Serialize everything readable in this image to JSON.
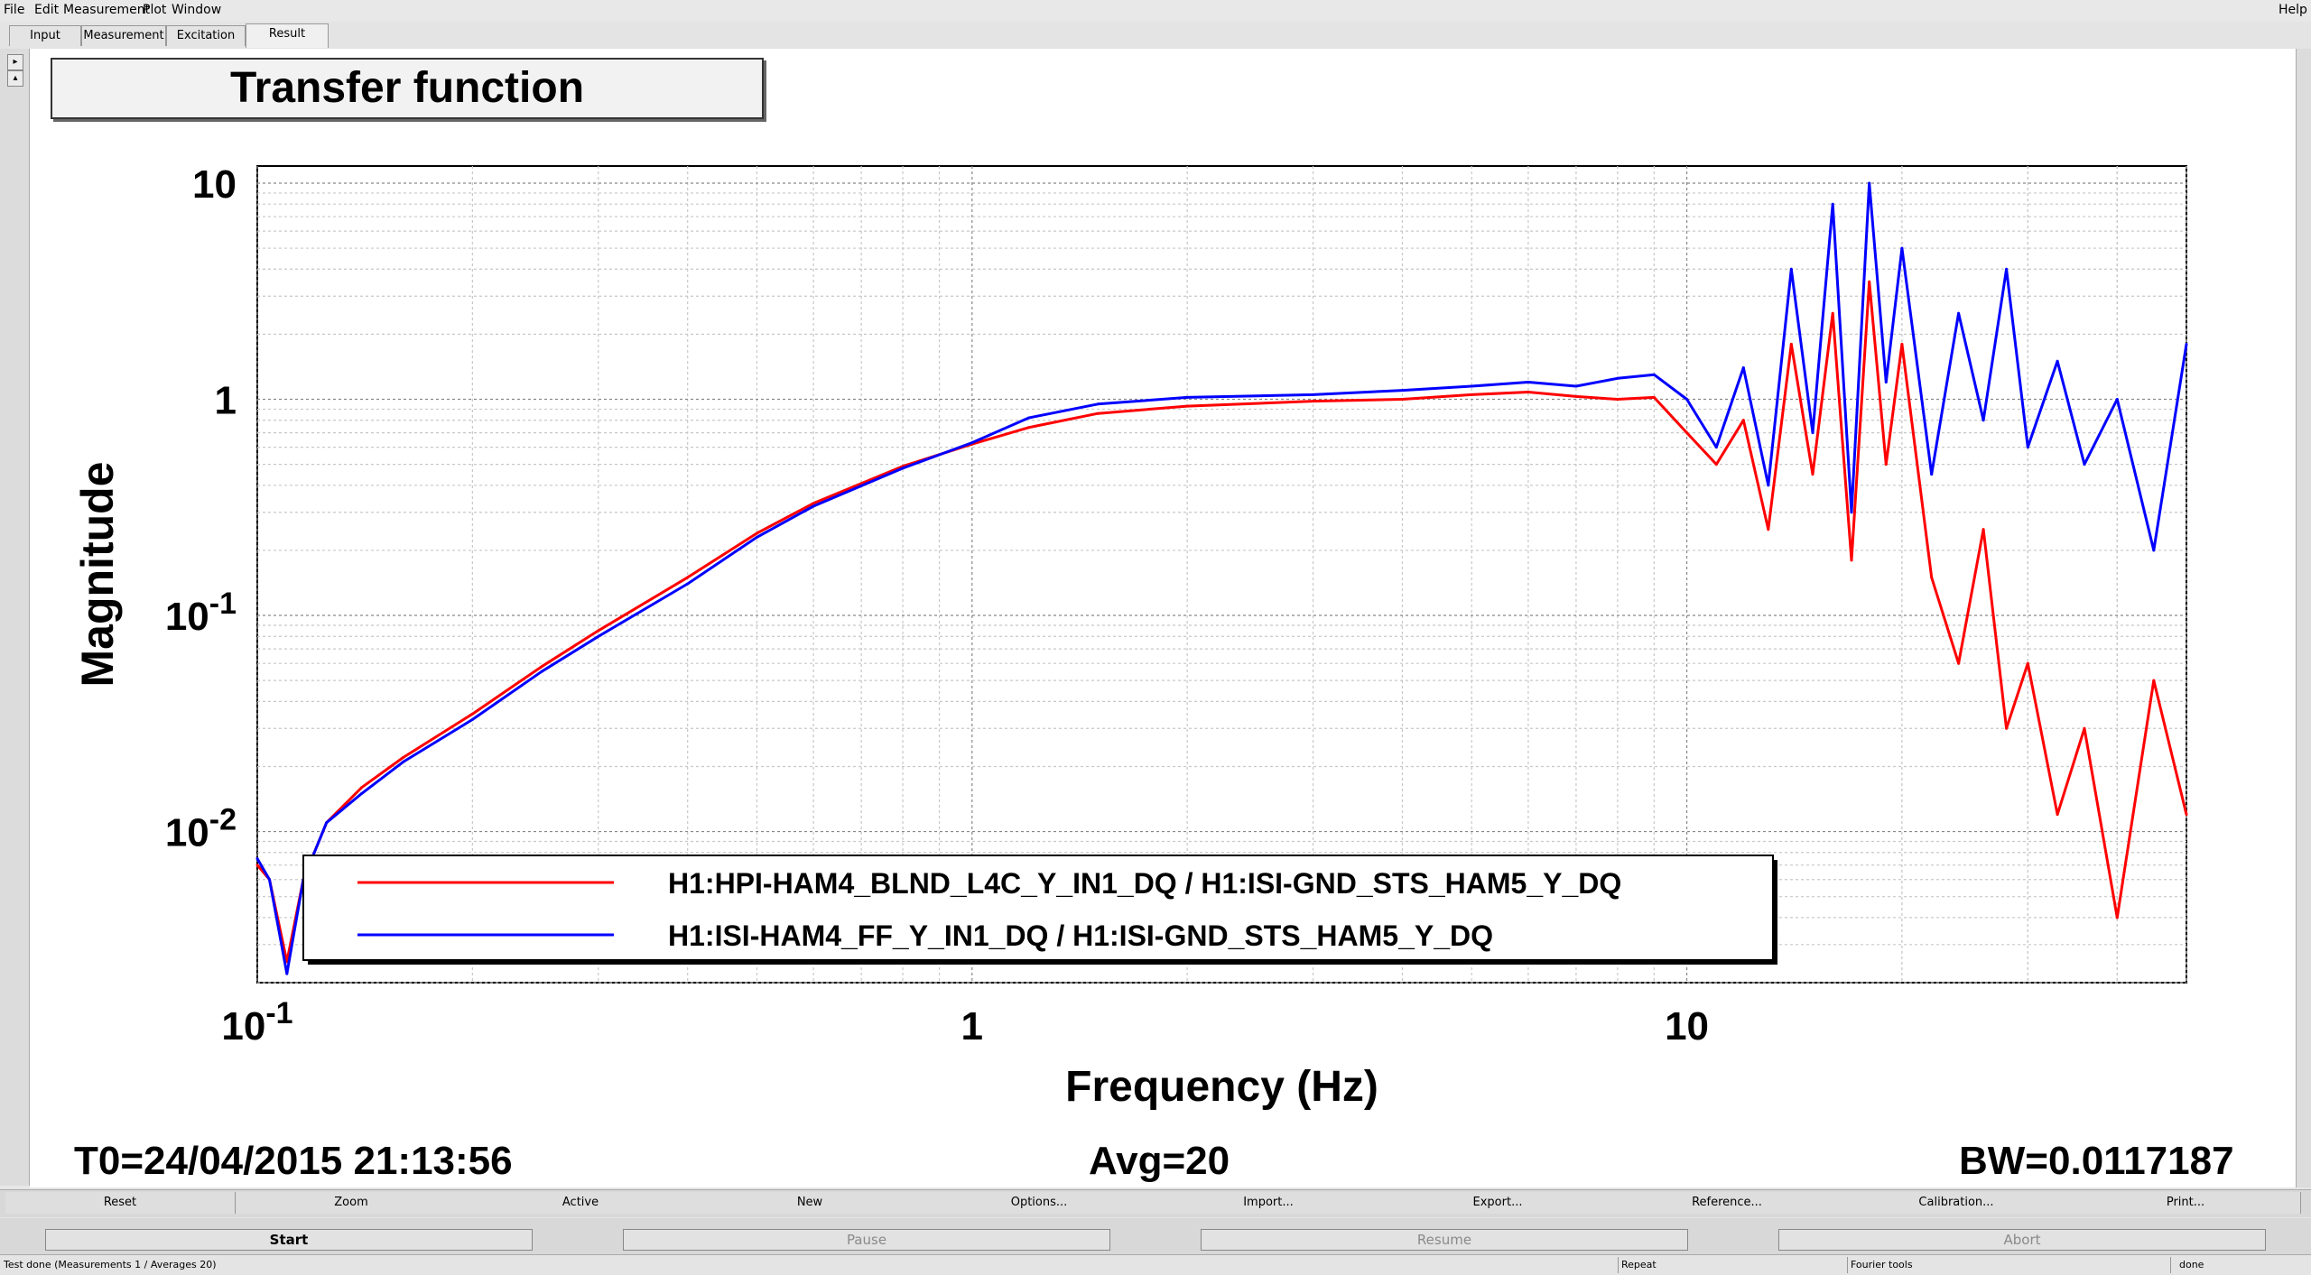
{
  "menu": {
    "file": "File",
    "edit": "Edit",
    "measurement": "Measurement",
    "plot": "Plot",
    "window": "Window",
    "help": "Help"
  },
  "tabs": [
    "Input",
    "Measurement",
    "Excitation",
    "Result"
  ],
  "active_tab": "Result",
  "colors": {
    "series1": "#ff0000",
    "series2": "#0000ff"
  },
  "plot": {
    "title": "Transfer function",
    "stats": {
      "t0": "T0=24/04/2015 21:13:56",
      "avg": "Avg=20",
      "bw": "BW=0.0117187"
    },
    "legend": [
      "H1:HPI-HAM4_BLND_L4C_Y_IN1_DQ / H1:ISI-GND_STS_HAM5_Y_DQ",
      "H1:ISI-HAM4_FF_Y_IN1_DQ / H1:ISI-GND_STS_HAM5_Y_DQ"
    ]
  },
  "chart_data": {
    "type": "line",
    "title": "Transfer function",
    "xlabel": "Frequency (Hz)",
    "ylabel": "Magnitude",
    "xscale": "log",
    "yscale": "log",
    "xlim": [
      0.1,
      50
    ],
    "ylim": [
      0.002,
      12
    ],
    "grid": true,
    "legend_position": "bottom-center",
    "x_tick_labels": [
      "10^-1",
      "1",
      "10"
    ],
    "y_tick_labels": [
      "10^-2",
      "10^-1",
      "1",
      "10"
    ],
    "series": [
      {
        "name": "H1:HPI-HAM4_BLND_L4C_Y_IN1_DQ / H1:ISI-GND_STS_HAM5_Y_DQ",
        "color": "#ff0000",
        "x": [
          0.1,
          0.104,
          0.11,
          0.116,
          0.125,
          0.14,
          0.16,
          0.2,
          0.25,
          0.3,
          0.4,
          0.5,
          0.6,
          0.8,
          1.0,
          1.2,
          1.5,
          2.0,
          3.0,
          4.0,
          5.0,
          6.0,
          7.0,
          8.0,
          9.0,
          10.0,
          11.0,
          12.0,
          13.0,
          14.0,
          15.0,
          16.0,
          17.0,
          18.0,
          19.0,
          20.0,
          22.0,
          24.0,
          26.0,
          28.0,
          30.0,
          33.0,
          36.0,
          40.0,
          45.0,
          50.0
        ],
        "y": [
          0.007,
          0.006,
          0.0025,
          0.006,
          0.011,
          0.016,
          0.022,
          0.035,
          0.058,
          0.085,
          0.15,
          0.24,
          0.33,
          0.49,
          0.62,
          0.74,
          0.86,
          0.93,
          0.98,
          1.0,
          1.05,
          1.08,
          1.03,
          1.0,
          1.02,
          0.7,
          0.5,
          0.8,
          0.25,
          1.8,
          0.45,
          2.5,
          0.18,
          3.5,
          0.5,
          1.8,
          0.15,
          0.06,
          0.25,
          0.03,
          0.06,
          0.012,
          0.03,
          0.004,
          0.05,
          0.012
        ]
      },
      {
        "name": "H1:ISI-HAM4_FF_Y_IN1_DQ / H1:ISI-GND_STS_HAM5_Y_DQ",
        "color": "#0000ff",
        "x": [
          0.1,
          0.104,
          0.11,
          0.116,
          0.125,
          0.14,
          0.16,
          0.2,
          0.25,
          0.3,
          0.4,
          0.5,
          0.6,
          0.8,
          1.0,
          1.2,
          1.5,
          2.0,
          3.0,
          4.0,
          5.0,
          6.0,
          7.0,
          8.0,
          9.0,
          10.0,
          11.0,
          12.0,
          13.0,
          14.0,
          15.0,
          16.0,
          17.0,
          18.0,
          19.0,
          20.0,
          22.0,
          24.0,
          26.0,
          28.0,
          30.0,
          33.0,
          36.0,
          40.0,
          45.0,
          50.0
        ],
        "y": [
          0.0075,
          0.006,
          0.0022,
          0.006,
          0.011,
          0.015,
          0.021,
          0.033,
          0.055,
          0.08,
          0.14,
          0.23,
          0.32,
          0.48,
          0.63,
          0.82,
          0.95,
          1.02,
          1.05,
          1.1,
          1.15,
          1.2,
          1.15,
          1.25,
          1.3,
          1.0,
          0.6,
          1.4,
          0.4,
          4.0,
          0.7,
          8.0,
          0.3,
          10.0,
          1.2,
          5.0,
          0.45,
          2.5,
          0.8,
          4.0,
          0.6,
          1.5,
          0.5,
          1.0,
          0.2,
          1.8
        ]
      }
    ]
  },
  "buttons": [
    "Reset",
    "Zoom",
    "Active",
    "New",
    "Options...",
    "Import...",
    "Export...",
    "Reference...",
    "Calibration...",
    "Print..."
  ],
  "actions": {
    "start": "Start",
    "pause": "Pause",
    "resume": "Resume",
    "abort": "Abort"
  },
  "status": {
    "message": "Test done (Measurements 1 / Averages 20)",
    "repeat": "Repeat",
    "tools": "Fourier tools",
    "state": "done"
  }
}
